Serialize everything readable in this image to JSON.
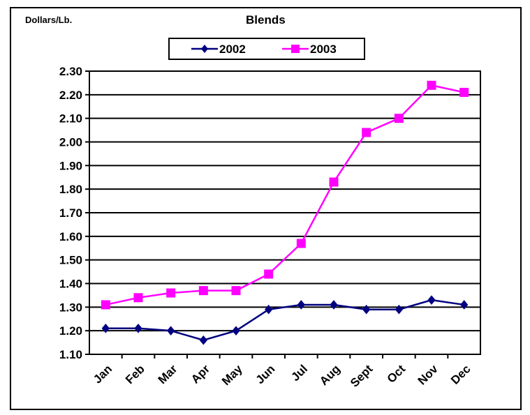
{
  "chart_data": {
    "type": "line",
    "title": "Blends",
    "ylabel": "Dollars/Lb.",
    "xlabel": "",
    "categories": [
      "Jan",
      "Feb",
      "Mar",
      "Apr",
      "May",
      "Jun",
      "Jul",
      "Aug",
      "Sept",
      "Oct",
      "Nov",
      "Dec"
    ],
    "ylim": [
      1.1,
      2.3
    ],
    "yticks": [
      "1.10",
      "1.20",
      "1.30",
      "1.40",
      "1.50",
      "1.60",
      "1.70",
      "1.80",
      "1.90",
      "2.00",
      "2.10",
      "2.20",
      "2.30"
    ],
    "grid": true,
    "legend_position": "top",
    "series": [
      {
        "name": "2002",
        "color": "#000080",
        "marker": "diamond",
        "values": [
          1.21,
          1.21,
          1.2,
          1.16,
          1.2,
          1.29,
          1.31,
          1.31,
          1.29,
          1.29,
          1.33,
          1.31
        ]
      },
      {
        "name": "2003",
        "color": "#ff00ff",
        "marker": "square",
        "values": [
          1.31,
          1.34,
          1.36,
          1.37,
          1.37,
          1.44,
          1.57,
          1.83,
          2.04,
          2.1,
          2.24,
          2.21
        ]
      }
    ]
  }
}
